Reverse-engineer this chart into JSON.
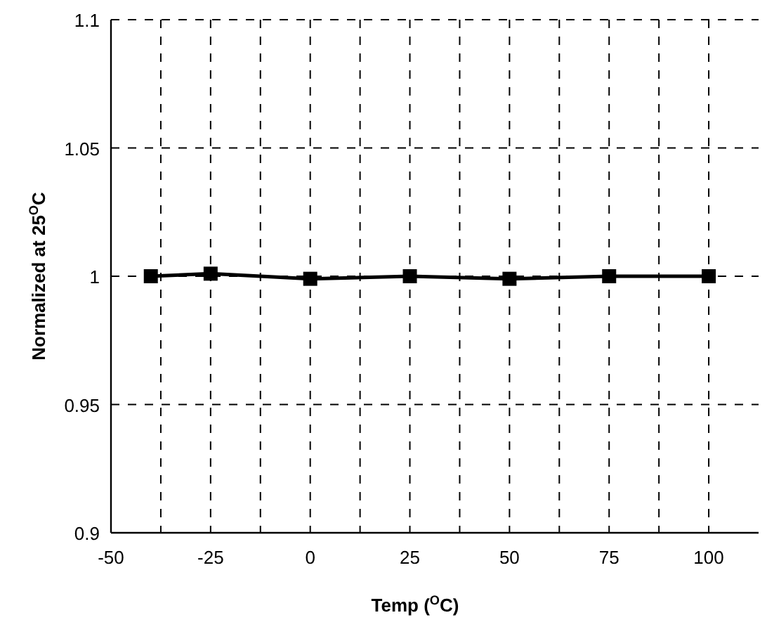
{
  "chart_data": {
    "type": "line",
    "xlabel": "Temp ($^{O}$C)",
    "ylabel": "Normalized at 25$^{O}$C",
    "x": [
      -40,
      -25,
      0,
      25,
      50,
      75,
      100
    ],
    "series": [
      {
        "color": "#000000",
        "values": [
          1.0,
          1.001,
          0.999,
          1.0,
          0.999,
          1.0,
          1.0
        ]
      }
    ],
    "xlim": [
      -50,
      112.5
    ],
    "xticks": [
      -50,
      {
        "value": -37.5,
        "label": null
      },
      -25,
      {
        "value": -12.5,
        "label": null
      },
      0,
      {
        "value": 12.5,
        "label": null
      },
      25,
      {
        "value": 37.5,
        "label": null
      },
      50,
      {
        "value": 62.5,
        "label": null
      },
      75,
      {
        "value": 87.5,
        "label": null
      },
      100
    ],
    "ylim": [
      0.9,
      1.1
    ],
    "yticks": [
      0.9,
      0.95,
      1,
      1.05,
      1.1
    ],
    "grid": true,
    "marker": "square",
    "line_style": "solid"
  }
}
